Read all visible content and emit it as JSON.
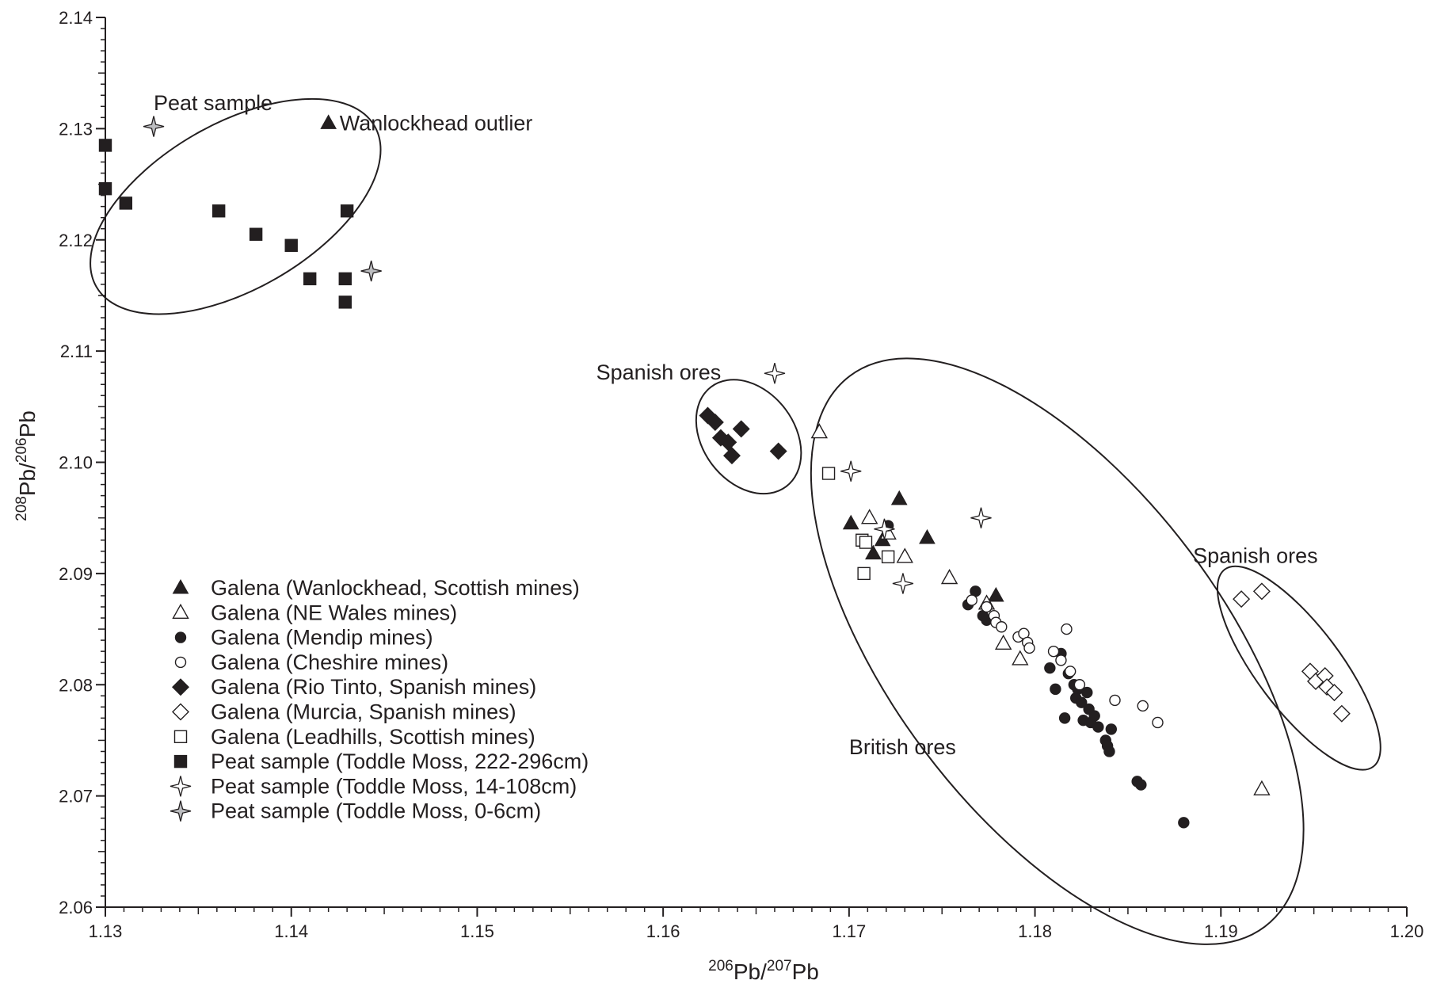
{
  "chart_data": {
    "type": "scatter",
    "title": "",
    "xlabel": {
      "sup1": "206",
      "base1": "Pb/",
      "sup2": "207",
      "base2": "Pb"
    },
    "ylabel": {
      "sup1": "208",
      "base1": "Pb/",
      "sup2": "206",
      "base2": "Pb"
    },
    "xlim": [
      1.13,
      1.2
    ],
    "ylim": [
      2.06,
      2.14
    ],
    "x_ticks": [
      "1.13",
      "1.14",
      "1.15",
      "1.16",
      "1.17",
      "1.18",
      "1.19",
      "1.20"
    ],
    "y_ticks": [
      "2.06",
      "2.07",
      "2.08",
      "2.09",
      "2.10",
      "2.11",
      "2.12",
      "2.13",
      "2.14"
    ],
    "grid": false,
    "legend_position": "bottom-left",
    "colors": {
      "ink": "#231f20",
      "star_fill": "#bcbdc0"
    },
    "series": [
      {
        "name": "Galena (Wanlockhead, Scottish mines)",
        "marker": "triangle-filled",
        "points": [
          [
            1.1701,
            2.0945
          ],
          [
            1.1713,
            2.0918
          ],
          [
            1.1718,
            2.093
          ],
          [
            1.1727,
            2.0967
          ],
          [
            1.1742,
            2.0932
          ],
          [
            1.1779,
            2.088
          ],
          [
            1.142,
            2.1305
          ]
        ]
      },
      {
        "name": "Galena  (NE Wales mines)",
        "marker": "triangle-open",
        "points": [
          [
            1.1684,
            2.1027
          ],
          [
            1.1711,
            2.095
          ],
          [
            1.1721,
            2.0936
          ],
          [
            1.173,
            2.0915
          ],
          [
            1.1754,
            2.0896
          ],
          [
            1.1774,
            2.0873
          ],
          [
            1.1783,
            2.0837
          ],
          [
            1.1792,
            2.0823
          ],
          [
            1.1922,
            2.0706
          ]
        ]
      },
      {
        "name": "Galena (Mendip mines)",
        "marker": "circle-filled",
        "points": [
          [
            1.1721,
            2.0943
          ],
          [
            1.1764,
            2.0872
          ],
          [
            1.1768,
            2.0884
          ],
          [
            1.1772,
            2.0862
          ],
          [
            1.1774,
            2.0858
          ],
          [
            1.1808,
            2.0815
          ],
          [
            1.1811,
            2.0796
          ],
          [
            1.1814,
            2.0828
          ],
          [
            1.1816,
            2.077
          ],
          [
            1.1818,
            2.081
          ],
          [
            1.1821,
            2.08
          ],
          [
            1.1823,
            2.0796
          ],
          [
            1.1822,
            2.0788
          ],
          [
            1.1825,
            2.0784
          ],
          [
            1.1826,
            2.0768
          ],
          [
            1.1828,
            2.0793
          ],
          [
            1.1829,
            2.0778
          ],
          [
            1.183,
            2.0766
          ],
          [
            1.1832,
            2.0772
          ],
          [
            1.1834,
            2.0762
          ],
          [
            1.1838,
            2.075
          ],
          [
            1.1839,
            2.0745
          ],
          [
            1.184,
            2.074
          ],
          [
            1.1841,
            2.076
          ],
          [
            1.1855,
            2.0713
          ],
          [
            1.1857,
            2.071
          ],
          [
            1.188,
            2.0676
          ]
        ]
      },
      {
        "name": "Galena (Cheshire mines)",
        "marker": "circle-open",
        "points": [
          [
            1.1766,
            2.0876
          ],
          [
            1.1774,
            2.087
          ],
          [
            1.1778,
            2.0862
          ],
          [
            1.1779,
            2.0856
          ],
          [
            1.1782,
            2.0852
          ],
          [
            1.1791,
            2.0843
          ],
          [
            1.1794,
            2.0846
          ],
          [
            1.1796,
            2.0838
          ],
          [
            1.1797,
            2.0833
          ],
          [
            1.181,
            2.083
          ],
          [
            1.1814,
            2.0822
          ],
          [
            1.1817,
            2.085
          ],
          [
            1.1819,
            2.0812
          ],
          [
            1.1824,
            2.08
          ],
          [
            1.1843,
            2.0786
          ],
          [
            1.1858,
            2.0781
          ],
          [
            1.1866,
            2.0766
          ]
        ]
      },
      {
        "name": "Galena (Rio Tinto, Spanish mines)",
        "marker": "diamond-filled",
        "points": [
          [
            1.1624,
            2.1042
          ],
          [
            1.1628,
            2.1036
          ],
          [
            1.1631,
            2.1022
          ],
          [
            1.1635,
            2.1018
          ],
          [
            1.1637,
            2.1006
          ],
          [
            1.1642,
            2.103
          ],
          [
            1.1662,
            2.101
          ]
        ]
      },
      {
        "name": "Galena (Murcia, Spanish mines)",
        "marker": "diamond-open",
        "points": [
          [
            1.1911,
            2.0877
          ],
          [
            1.1922,
            2.0884
          ],
          [
            1.1948,
            2.0812
          ],
          [
            1.1951,
            2.0803
          ],
          [
            1.1956,
            2.0808
          ],
          [
            1.1957,
            2.0798
          ],
          [
            1.1961,
            2.0793
          ],
          [
            1.1965,
            2.0774
          ]
        ]
      },
      {
        "name": "Galena (Leadhills, Scottish mines)",
        "marker": "square-open",
        "points": [
          [
            1.1689,
            2.099
          ],
          [
            1.1707,
            2.093
          ],
          [
            1.1709,
            2.0928
          ],
          [
            1.1721,
            2.0915
          ],
          [
            1.1708,
            2.09
          ]
        ]
      },
      {
        "name": "Peat sample (Toddle Moss, 222-296cm)",
        "marker": "square-filled",
        "points": [
          [
            1.13,
            2.1285
          ],
          [
            1.13,
            2.1246
          ],
          [
            1.1311,
            2.1233
          ],
          [
            1.1361,
            2.1226
          ],
          [
            1.1381,
            2.1205
          ],
          [
            1.14,
            2.1195
          ],
          [
            1.141,
            2.1165
          ],
          [
            1.143,
            2.1226
          ],
          [
            1.1429,
            2.1165
          ],
          [
            1.1429,
            2.1144
          ]
        ]
      },
      {
        "name": "Peat sample (Toddle Moss, 14-108cm)",
        "marker": "star-open",
        "points": [
          [
            1.166,
            2.108
          ],
          [
            1.1701,
            2.0992
          ],
          [
            1.1719,
            2.094
          ],
          [
            1.1729,
            2.0891
          ],
          [
            1.1771,
            2.095
          ]
        ]
      },
      {
        "name": "Peat sample (Toddle Moss, 0-6cm)",
        "marker": "star-grey",
        "points": [
          [
            1.1326,
            2.1302
          ],
          [
            1.1443,
            2.1172
          ]
        ]
      }
    ],
    "ellipses": [
      {
        "label": "Peat sample",
        "center": [
          1.137,
          2.123
        ],
        "rx": 0.00864,
        "ry": 0.00743,
        "tilt_deg": 30
      },
      {
        "label": "Spanish ores",
        "center": [
          1.1646,
          2.1023
        ],
        "rx": 0.00247,
        "ry": 0.00561,
        "tilt_deg": 37
      },
      {
        "label": "British ores",
        "center": [
          1.1812,
          2.083
        ],
        "rx": 0.00893,
        "ry": 0.031,
        "tilt_deg": 37
      },
      {
        "label": "Spanish ores",
        "center": [
          1.1942,
          2.0815
        ],
        "rx": 0.00226,
        "ry": 0.0111,
        "tilt_deg": 37
      }
    ],
    "annotations": [
      {
        "text": "Peat sample",
        "x": 1.1326,
        "y": 2.1323,
        "anchor": "start"
      },
      {
        "text": "Wanlockhead outlier",
        "x": 1.1426,
        "y": 2.1305,
        "anchor": "start"
      },
      {
        "text": "Spanish ores",
        "x": 1.1564,
        "y": 2.1081,
        "anchor": "start"
      },
      {
        "text": "British ores",
        "x": 1.17,
        "y": 2.0744,
        "anchor": "start"
      },
      {
        "text": "Spanish ores",
        "x": 1.1885,
        "y": 2.0916,
        "anchor": "start"
      }
    ]
  }
}
